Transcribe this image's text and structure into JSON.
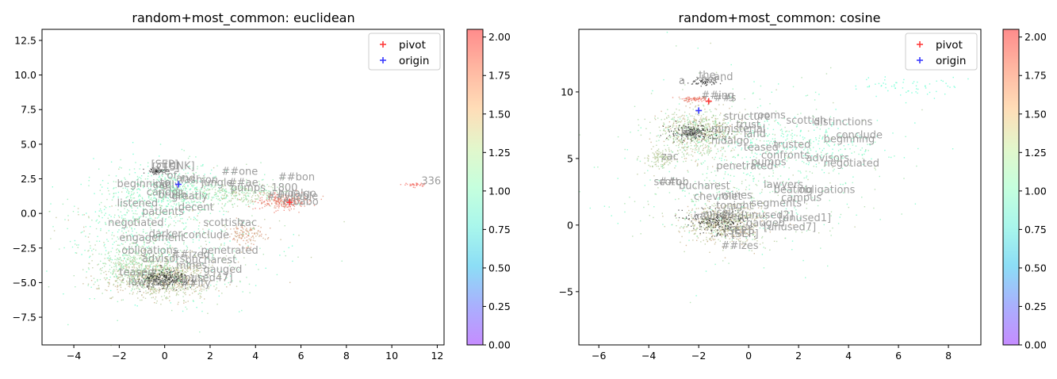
{
  "chart_data": [
    {
      "type": "scatter",
      "title": "random+most_common: euclidean",
      "xlabel": "",
      "ylabel": "",
      "xlim": [
        -5.4,
        12.3
      ],
      "ylim": [
        -9.5,
        13.3
      ],
      "xticks": [
        -4,
        -2,
        0,
        2,
        4,
        6,
        8,
        10,
        12
      ],
      "yticks": [
        -7.5,
        -5.0,
        -2.5,
        0.0,
        2.5,
        5.0,
        7.5,
        10.0,
        12.5
      ],
      "xtick_labels": [
        "−4",
        "−2",
        "0",
        "2",
        "4",
        "6",
        "8",
        "10",
        "12"
      ],
      "ytick_labels": [
        "−7.5",
        "−5.0",
        "−2.5",
        "0.0",
        "2.5",
        "5.0",
        "7.5",
        "10.0",
        "12.5"
      ],
      "legend": {
        "placement": "upper-right",
        "entries": [
          {
            "label": "pivot",
            "color": "#ff3b3b",
            "marker": "+"
          },
          {
            "label": "origin",
            "color": "#3b3bff",
            "marker": "+"
          }
        ]
      },
      "pivot": [
        5.5,
        0.8
      ],
      "origin": [
        0.6,
        2.1
      ],
      "colorbar": {
        "range": [
          0.0,
          2.05
        ],
        "ticks": [
          0.0,
          0.25,
          0.5,
          0.75,
          1.0,
          1.25,
          1.5,
          1.75,
          2.0
        ],
        "tick_labels": [
          "0.00",
          "0.25",
          "0.50",
          "0.75",
          "1.00",
          "1.25",
          "1.50",
          "1.75",
          "2.00"
        ],
        "colormap": "rainbow"
      },
      "clusters": [
        {
          "x": -0.2,
          "y": -4.6,
          "sx": 1.1,
          "sy": 0.7,
          "n": 900,
          "c": [
            1.5,
            1.75
          ]
        },
        {
          "x": -1.3,
          "y": -3.6,
          "sx": 0.9,
          "sy": 0.9,
          "n": 400,
          "c": [
            1.3,
            1.6
          ]
        },
        {
          "x": 3.0,
          "y": 1.5,
          "sx": 1.2,
          "sy": 0.4,
          "n": 350,
          "c": [
            1.3,
            1.65
          ]
        },
        {
          "x": 5.2,
          "y": 0.9,
          "sx": 0.6,
          "sy": 0.3,
          "n": 250,
          "c": [
            1.8,
            2.0
          ]
        },
        {
          "x": 0.6,
          "y": 1.6,
          "sx": 1.0,
          "sy": 0.8,
          "n": 300,
          "c": [
            1.1,
            1.4
          ]
        },
        {
          "x": -1.2,
          "y": 0.3,
          "sx": 1.0,
          "sy": 1.6,
          "n": 350,
          "c": [
            1.05,
            1.45
          ]
        },
        {
          "x": 3.5,
          "y": -1.5,
          "sx": 0.4,
          "sy": 0.4,
          "n": 140,
          "c": [
            1.7,
            1.85
          ]
        },
        {
          "x": 11.0,
          "y": 2.1,
          "sx": 0.25,
          "sy": 0.08,
          "n": 35,
          "c": [
            1.95,
            2.0
          ]
        },
        {
          "x": 0.2,
          "y": -2.0,
          "sx": 2.6,
          "sy": 2.6,
          "n": 550,
          "c": [
            1.0,
            1.7
          ]
        }
      ],
      "black_clusters": [
        {
          "x": 0.0,
          "y": -4.7,
          "sx": 0.6,
          "sy": 0.35,
          "n": 300
        },
        {
          "x": -0.4,
          "y": 3.1,
          "sx": 0.2,
          "sy": 0.1,
          "n": 60
        }
      ],
      "words": [
        {
          "t": "[SEP]",
          "x": -0.6,
          "y": 3.3
        },
        {
          "t": "[CLS]",
          "x": -0.55,
          "y": 3.1
        },
        {
          "t": "[UNK]",
          "x": 0.0,
          "y": 3.2
        },
        {
          "t": "the",
          "x": -0.5,
          "y": 2.8
        },
        {
          "t": "of",
          "x": 0.1,
          "y": 2.5
        },
        {
          "t": "and",
          "x": 0.5,
          "y": 2.3
        },
        {
          "t": "to",
          "x": -0.2,
          "y": 2.0
        },
        {
          "t": "##one",
          "x": 2.5,
          "y": 2.8
        },
        {
          "t": "##bon",
          "x": 5.0,
          "y": 2.4
        },
        {
          "t": "##ae",
          "x": 2.8,
          "y": 2.0
        },
        {
          "t": "jungle",
          "x": 1.6,
          "y": 2.0
        },
        {
          "t": "fashion",
          "x": 0.7,
          "y": 2.2
        },
        {
          "t": "pumps",
          "x": 2.9,
          "y": 1.6
        },
        {
          "t": "1800",
          "x": 4.7,
          "y": 1.6
        },
        {
          "t": "hidalgo",
          "x": 5.0,
          "y": 1.2
        },
        {
          "t": "##yllable",
          "x": 4.5,
          "y": 1.0
        },
        {
          "t": "mbabo",
          "x": 5.2,
          "y": 0.6
        },
        {
          "t": "336",
          "x": 11.3,
          "y": 2.1
        },
        {
          "t": "beginning",
          "x": -2.1,
          "y": 1.9
        },
        {
          "t": "sadly",
          "x": -0.5,
          "y": 1.8
        },
        {
          "t": "candor",
          "x": -0.8,
          "y": 1.3
        },
        {
          "t": "brush",
          "x": -0.3,
          "y": 1.1
        },
        {
          "t": "greatly",
          "x": 0.3,
          "y": 1.0
        },
        {
          "t": "listened",
          "x": -2.1,
          "y": 0.5
        },
        {
          "t": "decent",
          "x": 0.6,
          "y": 0.2
        },
        {
          "t": "patients",
          "x": -1.0,
          "y": -0.1
        },
        {
          "t": "scottish",
          "x": 1.7,
          "y": -0.9
        },
        {
          "t": "zac",
          "x": 3.3,
          "y": -0.9
        },
        {
          "t": "negotiated",
          "x": -2.5,
          "y": -0.9
        },
        {
          "t": "darker",
          "x": -0.7,
          "y": -1.7
        },
        {
          "t": "conclude",
          "x": 0.8,
          "y": -1.8
        },
        {
          "t": "engagement",
          "x": -2.0,
          "y": -2.0
        },
        {
          "t": "penetrated",
          "x": 1.6,
          "y": -2.9
        },
        {
          "t": "obligations",
          "x": -1.9,
          "y": -2.9
        },
        {
          "t": "##ized",
          "x": 0.3,
          "y": -3.2
        },
        {
          "t": "bucharest",
          "x": 0.9,
          "y": -3.6
        },
        {
          "t": "advisors",
          "x": -1.0,
          "y": -3.5
        },
        {
          "t": "mines",
          "x": 0.5,
          "y": -4.0
        },
        {
          "t": "teased",
          "x": -2.0,
          "y": -4.5
        },
        {
          "t": "lawyers",
          "x": -1.6,
          "y": -5.2
        },
        {
          "t": "gauged",
          "x": 1.7,
          "y": -4.3
        },
        {
          "t": "[unused47]",
          "x": 0.4,
          "y": -4.9
        },
        {
          "t": "##ity",
          "x": 0.7,
          "y": -5.3
        }
      ]
    },
    {
      "type": "scatter",
      "title": "random+most_common: cosine",
      "xlabel": "",
      "ylabel": "",
      "xlim": [
        -6.8,
        9.3
      ],
      "ylim": [
        -9.0,
        14.7
      ],
      "xticks": [
        -6,
        -4,
        -2,
        0,
        2,
        4,
        6,
        8
      ],
      "yticks": [
        -5,
        0,
        5,
        10
      ],
      "xtick_labels": [
        "−6",
        "−4",
        "−2",
        "0",
        "2",
        "4",
        "6",
        "8"
      ],
      "ytick_labels": [
        "−5",
        "0",
        "5",
        "10"
      ],
      "legend": {
        "placement": "upper-right",
        "entries": [
          {
            "label": "pivot",
            "color": "#ff3b3b",
            "marker": "+"
          },
          {
            "label": "origin",
            "color": "#3b3bff",
            "marker": "+"
          }
        ]
      },
      "pivot": [
        -1.6,
        9.3
      ],
      "origin": [
        -2.0,
        8.6
      ],
      "colorbar": {
        "range": [
          0.0,
          2.05
        ],
        "ticks": [
          0.0,
          0.25,
          0.5,
          0.75,
          1.0,
          1.25,
          1.5,
          1.75,
          2.0
        ],
        "tick_labels": [
          "0.00",
          "0.25",
          "0.50",
          "0.75",
          "1.00",
          "1.25",
          "1.50",
          "1.75",
          "2.00"
        ],
        "colormap": "rainbow"
      },
      "clusters": [
        {
          "x": -2.0,
          "y": 7.0,
          "sx": 0.8,
          "sy": 0.9,
          "n": 700,
          "c": [
            1.4,
            1.75
          ]
        },
        {
          "x": -2.2,
          "y": 9.5,
          "sx": 0.3,
          "sy": 0.1,
          "n": 80,
          "c": [
            1.85,
            2.0
          ]
        },
        {
          "x": -3.6,
          "y": 5.0,
          "sx": 0.3,
          "sy": 0.4,
          "n": 120,
          "c": [
            1.5,
            1.65
          ]
        },
        {
          "x": -1.0,
          "y": 0.2,
          "sx": 0.8,
          "sy": 0.8,
          "n": 650,
          "c": [
            1.5,
            1.75
          ]
        },
        {
          "x": 0.0,
          "y": 4.0,
          "sx": 2.4,
          "sy": 3.0,
          "n": 650,
          "c": [
            1.1,
            1.6
          ]
        },
        {
          "x": 2.0,
          "y": 6.0,
          "sx": 1.8,
          "sy": 1.0,
          "n": 250,
          "c": [
            1.0,
            1.3
          ]
        },
        {
          "x": 6.5,
          "y": 10.5,
          "sx": 1.2,
          "sy": 0.4,
          "n": 60,
          "c": [
            0.95,
            1.1
          ]
        }
      ],
      "black_clusters": [
        {
          "x": -1.8,
          "y": 10.8,
          "sx": 0.3,
          "sy": 0.15,
          "n": 70
        },
        {
          "x": -2.2,
          "y": 7.0,
          "sx": 0.5,
          "sy": 0.3,
          "n": 200
        },
        {
          "x": -1.2,
          "y": 0.3,
          "sx": 0.6,
          "sy": 0.5,
          "n": 260
        }
      ],
      "words": [
        {
          "t": "the",
          "x": -2.0,
          "y": 11.0
        },
        {
          "t": "and",
          "x": -1.4,
          "y": 10.9
        },
        {
          "t": "her",
          "x": -1.9,
          "y": 10.7
        },
        {
          "t": "a",
          "x": -2.8,
          "y": 10.6
        },
        {
          "t": "##ing",
          "x": -1.9,
          "y": 9.5
        },
        {
          "t": "##s",
          "x": -1.4,
          "y": 9.3
        },
        {
          "t": "structure",
          "x": -1.0,
          "y": 7.9
        },
        {
          "t": "rooms",
          "x": 0.2,
          "y": 8.0
        },
        {
          "t": "scottish",
          "x": 1.5,
          "y": 7.6
        },
        {
          "t": "distinctions",
          "x": 2.6,
          "y": 7.5
        },
        {
          "t": "trust",
          "x": -0.5,
          "y": 7.3
        },
        {
          "t": "ministerial",
          "x": -1.5,
          "y": 7.0
        },
        {
          "t": "land",
          "x": -0.2,
          "y": 6.6
        },
        {
          "t": "legs",
          "x": -2.7,
          "y": 6.7
        },
        {
          "t": "hidalgo",
          "x": -1.5,
          "y": 6.1
        },
        {
          "t": "conclude",
          "x": 3.5,
          "y": 6.5
        },
        {
          "t": "beginning",
          "x": 3.0,
          "y": 6.2
        },
        {
          "t": "trusted",
          "x": 1.0,
          "y": 5.8
        },
        {
          "t": "teased",
          "x": -0.2,
          "y": 5.6
        },
        {
          "t": "confronts",
          "x": 0.5,
          "y": 5.0
        },
        {
          "t": "advisors",
          "x": 2.3,
          "y": 4.8
        },
        {
          "t": "pumps",
          "x": 0.1,
          "y": 4.5
        },
        {
          "t": "negotiated",
          "x": 3.0,
          "y": 4.4
        },
        {
          "t": "zac",
          "x": -3.5,
          "y": 4.9
        },
        {
          "t": "penetrated",
          "x": -1.3,
          "y": 4.2
        },
        {
          "t": "##ob",
          "x": -3.6,
          "y": 3.0
        },
        {
          "t": "scott",
          "x": -3.8,
          "y": 3.0
        },
        {
          "t": "bucharest",
          "x": -2.8,
          "y": 2.7
        },
        {
          "t": "lawyers",
          "x": 0.6,
          "y": 2.8
        },
        {
          "t": "beating",
          "x": 1.0,
          "y": 2.4
        },
        {
          "t": "obligations",
          "x": 2.0,
          "y": 2.4
        },
        {
          "t": "mines",
          "x": -1.1,
          "y": 2.0
        },
        {
          "t": "chevrolet",
          "x": -2.2,
          "y": 1.9
        },
        {
          "t": "campus",
          "x": 1.3,
          "y": 1.8
        },
        {
          "t": "segments",
          "x": 0.1,
          "y": 1.4
        },
        {
          "t": "tonight",
          "x": -1.3,
          "y": 1.2
        },
        {
          "t": "cell",
          "x": -1.3,
          "y": 0.7
        },
        {
          "t": "infiltrated",
          "x": -2.2,
          "y": 0.4
        },
        {
          "t": "[unused1]",
          "x": 1.2,
          "y": 0.3
        },
        {
          "t": "[unused2]",
          "x": -0.3,
          "y": 0.5
        },
        {
          "t": "gauged",
          "x": -0.1,
          "y": -0.1
        },
        {
          "t": "[unused7]",
          "x": 0.6,
          "y": -0.4
        },
        {
          "t": "[SEP]",
          "x": -1.0,
          "y": -0.7
        },
        {
          "t": "[SEP]",
          "x": -0.7,
          "y": -0.9
        },
        {
          "t": "##izes",
          "x": -1.1,
          "y": -1.8
        }
      ]
    }
  ]
}
